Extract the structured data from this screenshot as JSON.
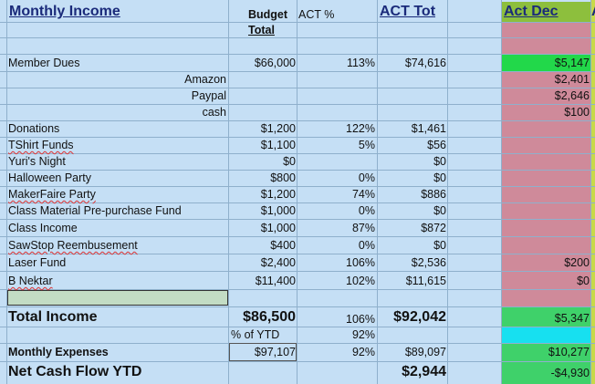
{
  "colors": {
    "background": "#c5dff5",
    "dec_pink": "#cf8a9a",
    "dec_header": "#8dbf3d",
    "dec_green": "#3fd16a",
    "dec_bright_green": "#22d84a",
    "dec_cyan": "#17e0f0",
    "total_label_cell": "#c3dcc4"
  },
  "headers": {
    "title": "Monthly Income",
    "budget_line1": "Budget",
    "budget_line2": "Total",
    "act_pct": "ACT %",
    "act_tot": "ACT Tot",
    "act_dec": "Act Dec",
    "next_col_letter": "A"
  },
  "rows": [
    {
      "label": "Member Dues",
      "budget": "$66,000",
      "pct": "113%",
      "tot": "$74,616",
      "dec": "$5,147"
    },
    {
      "label": "Amazon",
      "sub": true,
      "dec": "$2,401"
    },
    {
      "label": "Paypal",
      "sub": true,
      "dec": "$2,646"
    },
    {
      "label": "cash",
      "sub": true,
      "dec": "$100"
    },
    {
      "label": "Donations",
      "budget": "$1,200",
      "pct": "122%",
      "tot": "$1,461"
    },
    {
      "label": "TShirt Funds",
      "budget": "$1,100",
      "pct": "5%",
      "tot": "$56"
    },
    {
      "label": "Yuri's Night",
      "budget": "$0",
      "tot": "$0"
    },
    {
      "label": "Halloween Party",
      "budget": "$800",
      "pct": "0%",
      "tot": "$0"
    },
    {
      "label": "MakerFaire Party",
      "budget": "$1,200",
      "pct": "74%",
      "tot": "$886"
    },
    {
      "label": "Class Material Pre-purchase Fund",
      "budget": "$1,000",
      "pct": "0%",
      "tot": "$0"
    },
    {
      "label": "Class Income",
      "budget": "$1,000",
      "pct": "87%",
      "tot": "$872"
    },
    {
      "label": "SawStop Reembusement",
      "budget": "$400",
      "pct": "0%",
      "tot": "$0"
    },
    {
      "label": "Laser Fund",
      "budget": "$2,400",
      "pct": "106%",
      "tot": "$2,536",
      "dec": "$200"
    },
    {
      "label": "B Nektar",
      "budget": "$11,400",
      "pct": "102%",
      "tot": "$11,615",
      "dec": "$0"
    }
  ],
  "totals": {
    "total_income_label": "Total Income",
    "total_income_budget": "$86,500",
    "total_income_pct": "106%",
    "total_income_tot": "$92,042",
    "total_income_dec": "$5,347",
    "pct_ytd_label": "% of YTD",
    "pct_ytd_value": "92%",
    "monthly_expenses_label": "Monthly Expenses",
    "monthly_expenses_budget": "$97,107",
    "monthly_expenses_pct": "92%",
    "monthly_expenses_tot": "$89,097",
    "monthly_expenses_dec": "$10,277",
    "net_cash_label": "Net Cash Flow YTD",
    "net_cash_tot": "$2,944",
    "net_cash_dec": "-$4,930"
  }
}
